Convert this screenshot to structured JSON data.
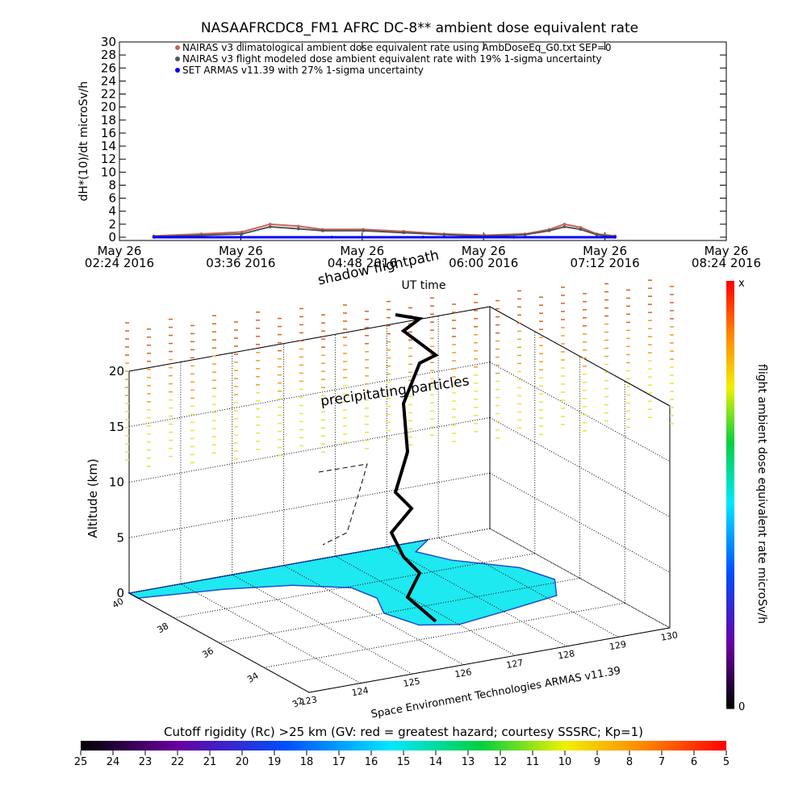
{
  "title": "NASAAFRCDC8_FM1 AFRC DC-8** ambient dose equivalent rate",
  "chart_data": [
    {
      "type": "line",
      "ylabel": "dH*(10)/dt microSv/h",
      "xlabel": "UT time",
      "xlim": [
        2.4,
        8.4
      ],
      "xticks": [
        {
          "value": 2.4,
          "label": "May 26\n02:24 2016"
        },
        {
          "value": 3.6,
          "label": "May 26\n03:36 2016"
        },
        {
          "value": 4.8,
          "label": "May 26\n04:48 2016"
        },
        {
          "value": 6.0,
          "label": "May 26\n06:00 2016"
        },
        {
          "value": 7.2,
          "label": "May 26\n07:12 2016"
        },
        {
          "value": 8.4,
          "label": "May 26\n08:24 2016"
        }
      ],
      "ylim": [
        -0.5,
        30
      ],
      "yticks": [
        0,
        2,
        4,
        6,
        8,
        10,
        12,
        14,
        16,
        18,
        20,
        22,
        24,
        26,
        28,
        30
      ],
      "legend": "upper left",
      "series": [
        {
          "name": "NAIRAS v3 climatological ambient dose equivalent rate using AmbDoseEq_G0.txt SEP=0",
          "color": "#c8645a",
          "x": [
            2.74,
            3.21,
            3.61,
            3.89,
            4.17,
            4.41,
            4.81,
            5.21,
            5.61,
            6.01,
            6.41,
            6.65,
            6.8,
            6.96,
            7.12,
            7.3
          ],
          "values": [
            0.2,
            0.5,
            0.8,
            2.0,
            1.7,
            1.2,
            1.2,
            0.9,
            0.5,
            0.3,
            0.5,
            1.2,
            2.0,
            1.5,
            0.5,
            0.2
          ]
        },
        {
          "name": "NAIRAS v3 flight modeled dose ambient equivalent rate with 19% 1-sigma uncertainty",
          "color": "#555555",
          "x": [
            2.74,
            3.21,
            3.61,
            3.89,
            4.17,
            4.41,
            4.81,
            5.21,
            5.61,
            6.01,
            6.41,
            6.65,
            6.8,
            6.96,
            7.12,
            7.3
          ],
          "values": [
            0.1,
            0.3,
            0.5,
            1.6,
            1.3,
            1.0,
            1.0,
            0.7,
            0.4,
            0.2,
            0.4,
            1.0,
            1.6,
            1.2,
            0.4,
            0.1
          ]
        },
        {
          "name": "SET ARMAS v11.39 with 27% 1-sigma uncertainty",
          "color": "#0000ff",
          "x": [
            2.74,
            3.6,
            4.5,
            5.4,
            6.3,
            7.3
          ],
          "values": [
            0,
            0,
            0,
            0,
            0,
            0
          ]
        }
      ]
    },
    {
      "type": "surface3d",
      "zlabel": "Altitude (km)",
      "zlim": [
        0,
        20
      ],
      "zticks": [
        0,
        5,
        10,
        15,
        20
      ],
      "xlim": [
        123,
        130
      ],
      "xticks": [
        123,
        124,
        125,
        126,
        127,
        128,
        129,
        130
      ],
      "ylim": [
        32,
        40
      ],
      "yticks": [
        40,
        38,
        36,
        34,
        32
      ],
      "annotations": [
        "shadow flightpath",
        "precipitating particles",
        "Space Environment Technologies ARMAS v11.39"
      ],
      "colorbar": {
        "label": "flight ambient dose equivalent rate microSv/h",
        "top_label": "x",
        "ticks": [
          0
        ]
      }
    },
    {
      "type": "colorbar",
      "title": "Cutoff rigidity (Rc) >25 km (GV: red = greatest hazard; courtesy SSSRC; Kp=1)",
      "xlim": [
        25,
        5
      ],
      "xticks": [
        25,
        24,
        23,
        22,
        21,
        20,
        19,
        18,
        17,
        16,
        15,
        14,
        13,
        12,
        11,
        10,
        9,
        8,
        7,
        6,
        5
      ]
    }
  ]
}
